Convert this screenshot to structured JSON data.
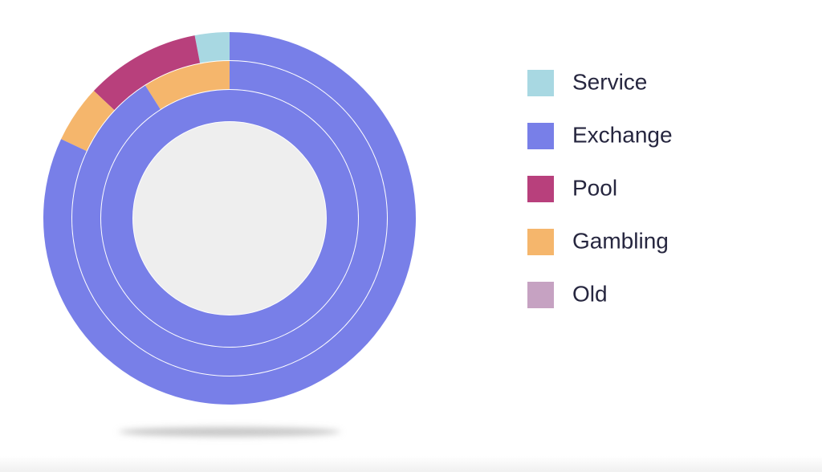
{
  "chart_data": {
    "type": "pie",
    "categories": [
      "Service",
      "Exchange",
      "Pool",
      "Gambling",
      "Old"
    ],
    "colors": [
      "#a8d8e2",
      "#787fe8",
      "#b8407c",
      "#f5b66c",
      "#c6a2c2"
    ],
    "rings": [
      {
        "values": [
          3,
          82,
          10,
          5,
          0
        ]
      },
      {
        "values": [
          0,
          91,
          0,
          9,
          0
        ]
      },
      {
        "values": [
          0,
          100,
          0,
          0,
          0
        ]
      }
    ],
    "legend": "right"
  }
}
